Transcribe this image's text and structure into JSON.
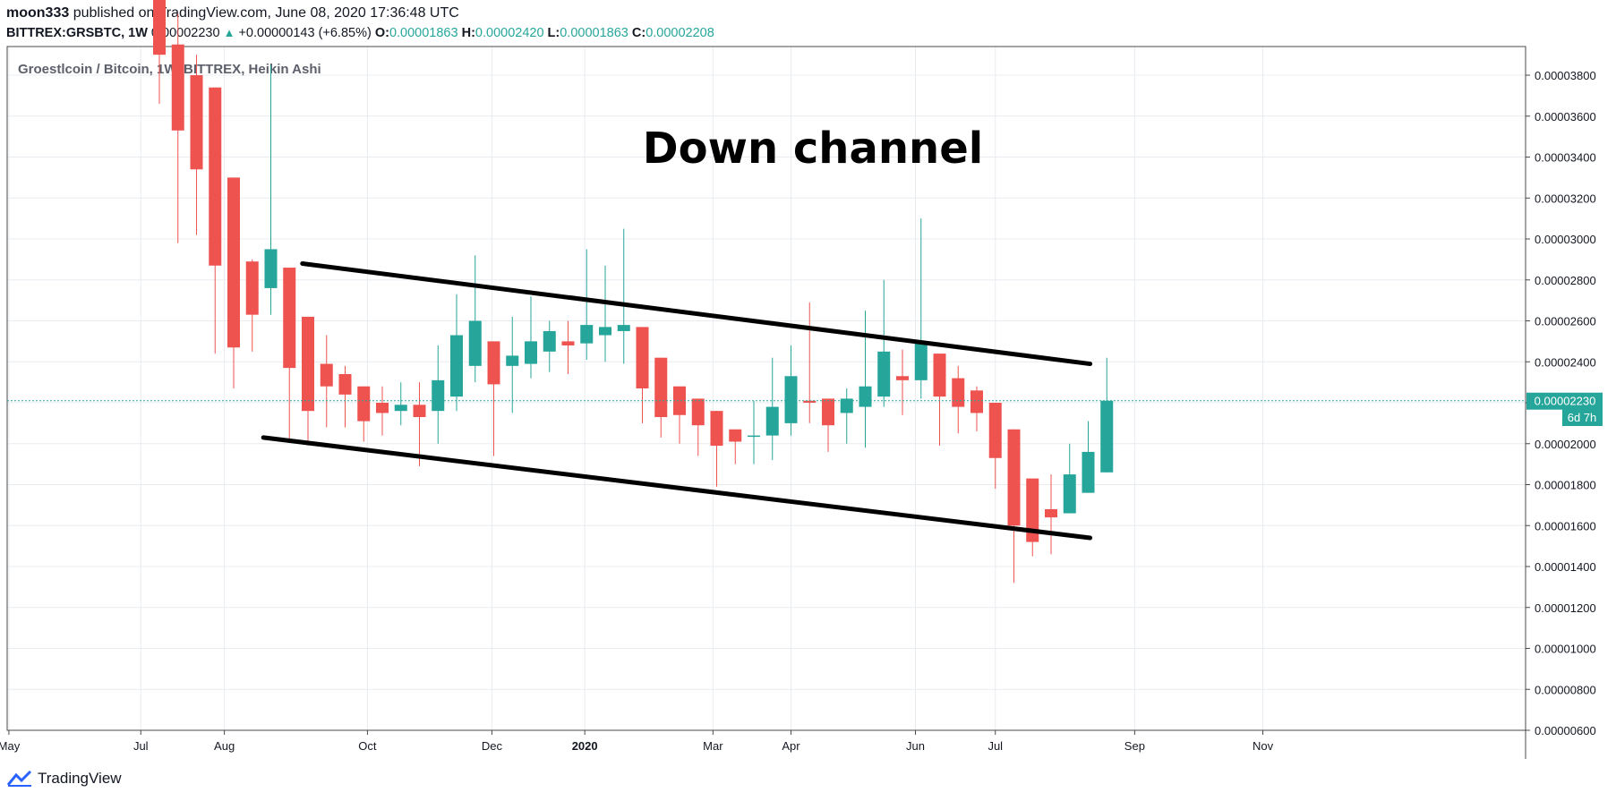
{
  "header": {
    "author": "moon333",
    "published_text": "published on TradingView.com, June 08, 2020 17:36:48 UTC",
    "symbol": "BITTREX:GRSBTC, 1W",
    "last": "0.00002230",
    "change": "+0.00000143 (+6.85%)",
    "o_label": "O:",
    "o_value": "0.00001863",
    "h_label": "H:",
    "h_value": "0.00002420",
    "l_label": "L:",
    "l_value": "0.00001863",
    "c_label": "C:",
    "c_value": "0.00002208"
  },
  "footer": {
    "brand": "TradingView"
  },
  "colors": {
    "up": "#26a69a",
    "down": "#ef5350",
    "grid": "#e8ecf1",
    "axis": "#4a4a4a",
    "price_line": "#26a69a"
  },
  "chart_data": {
    "type": "candlestick",
    "title": "Groestlcoin / Bitcoin, 1W, BITTREX, Heikin Ashi",
    "annotation": "Down channel",
    "y_range": [
      6e-06,
      3.94e-05
    ],
    "y_ticks": [
      "0.00003800",
      "0.00003600",
      "0.00003400",
      "0.00003200",
      "0.00003000",
      "0.00002800",
      "0.00002600",
      "0.00002400",
      "0.00002200",
      "0.00002000",
      "0.00001800",
      "0.00001600",
      "0.00001400",
      "0.00001200",
      "0.00001000",
      "0.00000800",
      "0.00000600"
    ],
    "y_tick_values": [
      38,
      36,
      34,
      32,
      30,
      28,
      26,
      24,
      22,
      20,
      18,
      16,
      14,
      12,
      10,
      8,
      6
    ],
    "x_ticks": [
      "May",
      "Jul",
      "Aug",
      "Oct",
      "Dec",
      "2020",
      "Mar",
      "Apr",
      "Jun",
      "Jul",
      "Sep",
      "Nov"
    ],
    "x_tick_bold": [
      false,
      false,
      false,
      false,
      false,
      true,
      false,
      false,
      false,
      false,
      false,
      false
    ],
    "current_price_label": "0.00002230",
    "countdown_label": "6d 7h",
    "current_price": 22.1,
    "value_unit": "1e-6 BTC",
    "candles": [
      {
        "o": 44.0,
        "c": 39.0,
        "h": 45.0,
        "l": 36.6
      },
      {
        "o": 39.5,
        "c": 35.3,
        "h": 41.0,
        "l": 29.8
      },
      {
        "o": 38.0,
        "c": 33.4,
        "h": 39.0,
        "l": 30.2
      },
      {
        "o": 37.4,
        "c": 28.7,
        "h": 37.4,
        "l": 24.4
      },
      {
        "o": 33.0,
        "c": 24.7,
        "h": 33.0,
        "l": 22.7
      },
      {
        "o": 28.9,
        "c": 26.3,
        "h": 29.0,
        "l": 24.5
      },
      {
        "o": 27.6,
        "c": 29.5,
        "h": 38.5,
        "l": 26.3
      },
      {
        "o": 28.6,
        "c": 23.7,
        "h": 28.6,
        "l": 20.2
      },
      {
        "o": 26.2,
        "c": 21.6,
        "h": 26.2,
        "l": 19.9
      },
      {
        "o": 23.9,
        "c": 22.8,
        "h": 25.3,
        "l": 20.8
      },
      {
        "o": 23.4,
        "c": 22.4,
        "h": 23.8,
        "l": 20.8
      },
      {
        "o": 22.8,
        "c": 21.1,
        "h": 22.8,
        "l": 20.1
      },
      {
        "o": 22.0,
        "c": 21.5,
        "h": 22.8,
        "l": 20.4
      },
      {
        "o": 21.6,
        "c": 21.9,
        "h": 23.0,
        "l": 20.9
      },
      {
        "o": 21.9,
        "c": 21.3,
        "h": 23.0,
        "l": 18.9
      },
      {
        "o": 21.6,
        "c": 23.1,
        "h": 24.8,
        "l": 20.0
      },
      {
        "o": 22.3,
        "c": 25.3,
        "h": 27.3,
        "l": 21.6
      },
      {
        "o": 23.8,
        "c": 26.0,
        "h": 29.2,
        "l": 23.0
      },
      {
        "o": 25.0,
        "c": 22.9,
        "h": 25.0,
        "l": 19.4
      },
      {
        "o": 23.8,
        "c": 24.3,
        "h": 26.2,
        "l": 21.5
      },
      {
        "o": 23.9,
        "c": 25.0,
        "h": 27.2,
        "l": 23.2
      },
      {
        "o": 24.5,
        "c": 25.5,
        "h": 26.0,
        "l": 23.5
      },
      {
        "o": 25.0,
        "c": 24.8,
        "h": 26.0,
        "l": 23.4
      },
      {
        "o": 24.9,
        "c": 25.8,
        "h": 29.5,
        "l": 24.1
      },
      {
        "o": 25.3,
        "c": 25.7,
        "h": 28.7,
        "l": 24.0
      },
      {
        "o": 25.5,
        "c": 25.8,
        "h": 30.5,
        "l": 23.9
      },
      {
        "o": 25.7,
        "c": 22.7,
        "h": 25.7,
        "l": 21.0
      },
      {
        "o": 24.2,
        "c": 21.3,
        "h": 24.2,
        "l": 20.3
      },
      {
        "o": 22.8,
        "c": 21.4,
        "h": 22.8,
        "l": 20.0
      },
      {
        "o": 22.2,
        "c": 20.9,
        "h": 22.2,
        "l": 19.4
      },
      {
        "o": 21.6,
        "c": 19.9,
        "h": 21.6,
        "l": 17.9
      },
      {
        "o": 20.7,
        "c": 20.1,
        "h": 20.7,
        "l": 19.0
      },
      {
        "o": 20.4,
        "c": 20.4,
        "h": 22.1,
        "l": 19.0
      },
      {
        "o": 20.4,
        "c": 21.8,
        "h": 24.2,
        "l": 19.2
      },
      {
        "o": 21.0,
        "c": 23.3,
        "h": 24.8,
        "l": 20.4
      },
      {
        "o": 22.1,
        "c": 22.0,
        "h": 26.9,
        "l": 21.0
      },
      {
        "o": 22.2,
        "c": 20.9,
        "h": 22.2,
        "l": 19.6
      },
      {
        "o": 21.5,
        "c": 22.2,
        "h": 22.7,
        "l": 20.0
      },
      {
        "o": 21.8,
        "c": 22.8,
        "h": 26.5,
        "l": 19.8
      },
      {
        "o": 22.3,
        "c": 24.5,
        "h": 28.0,
        "l": 21.8
      },
      {
        "o": 23.3,
        "c": 23.1,
        "h": 24.6,
        "l": 21.4
      },
      {
        "o": 23.1,
        "c": 24.9,
        "h": 31.0,
        "l": 22.2
      },
      {
        "o": 24.4,
        "c": 22.3,
        "h": 24.4,
        "l": 19.9
      },
      {
        "o": 23.2,
        "c": 21.8,
        "h": 23.8,
        "l": 20.5
      },
      {
        "o": 22.6,
        "c": 21.5,
        "h": 22.8,
        "l": 20.6
      },
      {
        "o": 22.0,
        "c": 19.3,
        "h": 22.0,
        "l": 17.8
      },
      {
        "o": 20.7,
        "c": 16.0,
        "h": 20.7,
        "l": 13.2
      },
      {
        "o": 18.3,
        "c": 15.2,
        "h": 18.3,
        "l": 14.5
      },
      {
        "o": 16.8,
        "c": 16.4,
        "h": 18.5,
        "l": 14.6
      },
      {
        "o": 16.6,
        "c": 18.5,
        "h": 20.0,
        "l": 16.6
      },
      {
        "o": 17.6,
        "c": 19.6,
        "h": 21.1,
        "l": 17.6
      },
      {
        "o": 18.6,
        "c": 22.1,
        "h": 24.2,
        "l": 18.6
      }
    ],
    "channel": {
      "upper": [
        {
          "week": 7.7,
          "value": 28.8
        },
        {
          "week": 50.1,
          "value": 23.9
        }
      ],
      "lower": [
        {
          "week": 5.6,
          "value": 20.3
        },
        {
          "week": 50.1,
          "value": 15.4
        }
      ]
    }
  }
}
